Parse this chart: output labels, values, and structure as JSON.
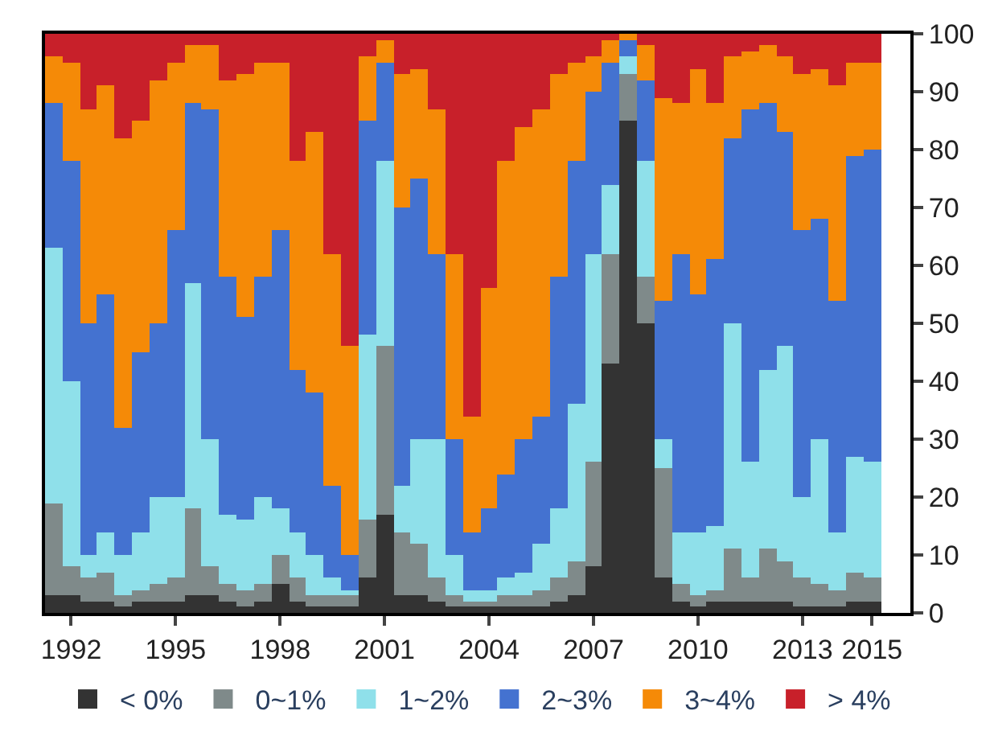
{
  "chart_data": {
    "type": "bar",
    "stacked": true,
    "x": [
      1991.5,
      1992.0,
      1992.5,
      1993.0,
      1993.5,
      1994.0,
      1994.5,
      1995.0,
      1995.5,
      1996.0,
      1996.5,
      1997.0,
      1997.5,
      1998.0,
      1998.5,
      1999.0,
      1999.5,
      2000.0,
      2000.5,
      2001.0,
      2001.5,
      2002.0,
      2002.5,
      2003.0,
      2003.5,
      2004.0,
      2004.5,
      2005.0,
      2005.5,
      2006.0,
      2006.5,
      2007.0,
      2007.5,
      2008.0,
      2008.5,
      2009.0,
      2009.5,
      2010.0,
      2010.5,
      2011.0,
      2011.5,
      2012.0,
      2012.5,
      2013.0,
      2013.5,
      2014.0,
      2014.5,
      2015.0
    ],
    "series": [
      {
        "name": "< 0%",
        "color": "#333333",
        "values": [
          3,
          3,
          2,
          2,
          1,
          2,
          2,
          2,
          3,
          3,
          2,
          1,
          2,
          5,
          2,
          1,
          1,
          1,
          6,
          17,
          3,
          3,
          2,
          1,
          1,
          1,
          1,
          1,
          1,
          2,
          3,
          8,
          43,
          85,
          50,
          6,
          2,
          1,
          2,
          2,
          2,
          2,
          2,
          1,
          1,
          1,
          2,
          2
        ]
      },
      {
        "name": "0~1%",
        "color": "#7f8a8a",
        "values": [
          16,
          5,
          4,
          5,
          2,
          2,
          3,
          4,
          15,
          5,
          3,
          3,
          3,
          5,
          4,
          2,
          2,
          2,
          10,
          29,
          11,
          9,
          4,
          2,
          1,
          1,
          2,
          2,
          3,
          4,
          6,
          18,
          19,
          8,
          8,
          19,
          3,
          2,
          2,
          9,
          4,
          9,
          7,
          5,
          4,
          3,
          5,
          4
        ]
      },
      {
        "name": "1~2%",
        "color": "#8fe0ea",
        "values": [
          44,
          32,
          4,
          7,
          7,
          10,
          15,
          14,
          39,
          22,
          12,
          12,
          15,
          8,
          8,
          7,
          3,
          1,
          32,
          32,
          8,
          18,
          24,
          7,
          2,
          2,
          3,
          4,
          8,
          12,
          27,
          36,
          12,
          3,
          20,
          5,
          9,
          11,
          11,
          39,
          20,
          31,
          37,
          14,
          25,
          10,
          20,
          20
        ]
      },
      {
        "name": "2~3%",
        "color": "#4472d0",
        "values": [
          25,
          38,
          40,
          41,
          22,
          31,
          30,
          46,
          31,
          57,
          41,
          35,
          38,
          48,
          28,
          28,
          16,
          6,
          37,
          17,
          48,
          45,
          32,
          20,
          10,
          14,
          18,
          23,
          22,
          40,
          42,
          28,
          21,
          3,
          14,
          24,
          48,
          41,
          46,
          32,
          61,
          46,
          37,
          46,
          38,
          40,
          52,
          54
        ]
      },
      {
        "name": "3~4%",
        "color": "#f58a07",
        "values": [
          8,
          17,
          37,
          36,
          50,
          40,
          42,
          29,
          10,
          11,
          34,
          42,
          37,
          29,
          36,
          45,
          40,
          36,
          11,
          4,
          23,
          19,
          25,
          32,
          20,
          38,
          54,
          54,
          53,
          35,
          17,
          6,
          4,
          1,
          6,
          35,
          26,
          39,
          27,
          14,
          10,
          10,
          13,
          27,
          26,
          37,
          16,
          15
        ]
      },
      {
        "name": "> 4%",
        "color": "#c8202a",
        "values": [
          4,
          5,
          13,
          9,
          18,
          15,
          8,
          5,
          2,
          2,
          8,
          7,
          5,
          5,
          22,
          17,
          38,
          54,
          4,
          1,
          7,
          6,
          13,
          38,
          66,
          44,
          22,
          16,
          13,
          7,
          5,
          4,
          1,
          0,
          2,
          11,
          12,
          6,
          12,
          4,
          3,
          2,
          4,
          7,
          6,
          9,
          5,
          5
        ]
      }
    ],
    "xlim": [
      1991.25,
      2016.1
    ],
    "xticks": [
      1992,
      1995,
      1998,
      2001,
      2004,
      2007,
      2010,
      2013,
      2015
    ],
    "ylim": [
      0,
      100
    ],
    "yticks": [
      0,
      10,
      20,
      30,
      40,
      50,
      60,
      70,
      80,
      90,
      100
    ],
    "legend": "bottom"
  }
}
